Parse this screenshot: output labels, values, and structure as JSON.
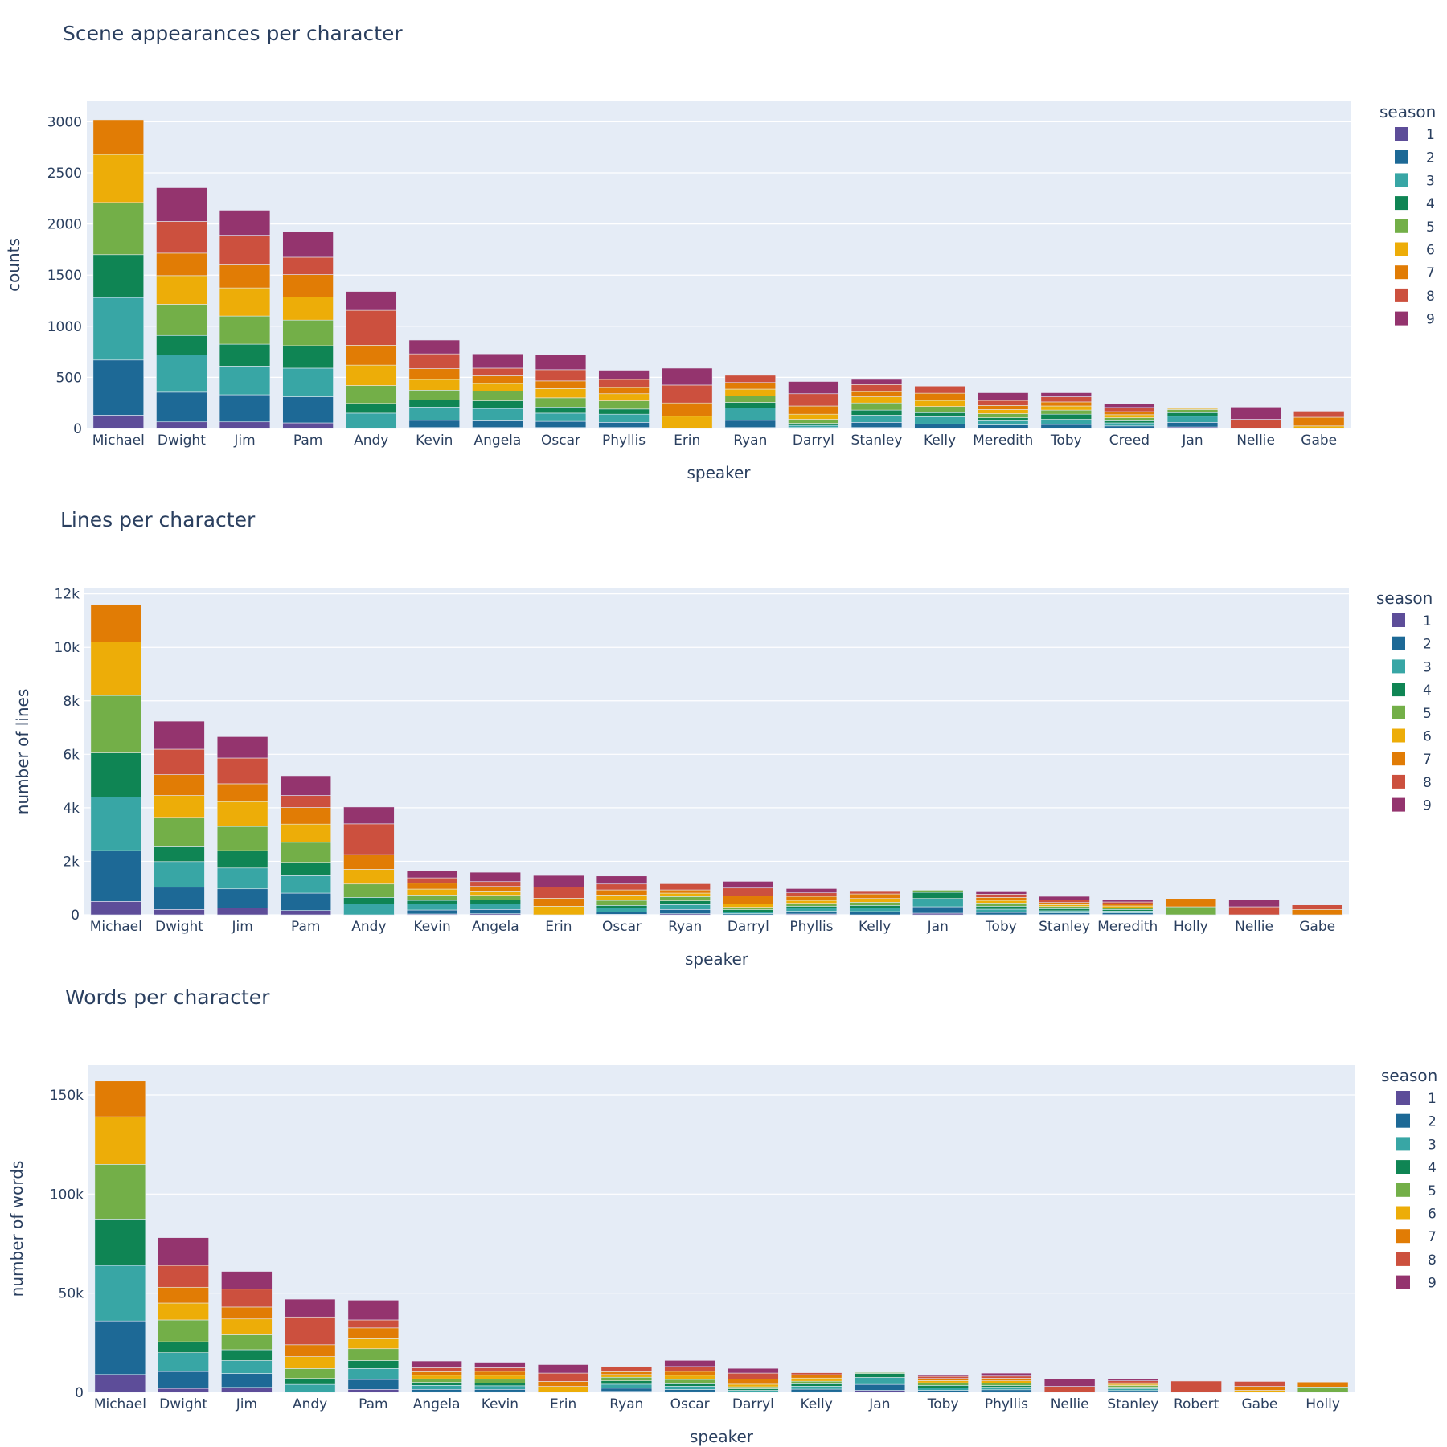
{
  "season_colors": [
    "#5d4d99",
    "#1d6996",
    "#38a6a5",
    "#0f8554",
    "#73af48",
    "#edad08",
    "#e17c05",
    "#cc503e",
    "#94346e"
  ],
  "chart_data": [
    {
      "type": "bar",
      "stacked": true,
      "title": "Scene appearances per character",
      "xlabel": "speaker",
      "ylabel": "counts",
      "legend_title": "season",
      "legend_position": "right",
      "ylim": [
        0,
        3200
      ],
      "yticks": [
        0,
        500,
        1000,
        1500,
        2000,
        2500,
        3000
      ],
      "ytick_labels": [
        "0",
        "500",
        "1000",
        "1500",
        "2000",
        "2500",
        "3000"
      ],
      "categories": [
        "Michael",
        "Dwight",
        "Jim",
        "Pam",
        "Andy",
        "Kevin",
        "Angela",
        "Oscar",
        "Phyllis",
        "Erin",
        "Ryan",
        "Darryl",
        "Stanley",
        "Kelly",
        "Meredith",
        "Toby",
        "Creed",
        "Jan",
        "Nellie",
        "Gabe"
      ],
      "series": [
        {
          "name": "1",
          "values": [
            130,
            65,
            65,
            55,
            0,
            10,
            10,
            10,
            10,
            0,
            10,
            0,
            10,
            0,
            5,
            0,
            5,
            15,
            0,
            0
          ]
        },
        {
          "name": "2",
          "values": [
            540,
            290,
            265,
            255,
            0,
            70,
            65,
            60,
            50,
            0,
            70,
            10,
            50,
            45,
            30,
            40,
            20,
            45,
            0,
            0
          ]
        },
        {
          "name": "3",
          "values": [
            610,
            365,
            280,
            280,
            150,
            130,
            120,
            80,
            80,
            0,
            120,
            20,
            70,
            70,
            40,
            50,
            30,
            60,
            0,
            0
          ]
        },
        {
          "name": "4",
          "values": [
            420,
            190,
            215,
            220,
            95,
            70,
            75,
            60,
            50,
            0,
            55,
            20,
            50,
            40,
            30,
            50,
            20,
            35,
            0,
            0
          ]
        },
        {
          "name": "5",
          "values": [
            510,
            305,
            275,
            250,
            175,
            95,
            95,
            90,
            80,
            0,
            65,
            40,
            70,
            60,
            40,
            40,
            30,
            30,
            0,
            0
          ]
        },
        {
          "name": "6",
          "values": [
            470,
            280,
            275,
            225,
            200,
            105,
            75,
            90,
            70,
            120,
            65,
            50,
            60,
            60,
            40,
            40,
            30,
            10,
            0,
            25
          ]
        },
        {
          "name": "7",
          "values": [
            340,
            220,
            225,
            220,
            195,
            105,
            75,
            75,
            60,
            130,
            65,
            80,
            50,
            70,
            40,
            40,
            30,
            0,
            0,
            85
          ]
        },
        {
          "name": "8",
          "values": [
            0,
            310,
            290,
            170,
            340,
            145,
            75,
            110,
            80,
            175,
            70,
            120,
            70,
            70,
            50,
            50,
            40,
            0,
            90,
            60
          ]
        },
        {
          "name": "9",
          "values": [
            0,
            330,
            245,
            250,
            185,
            135,
            140,
            145,
            90,
            165,
            0,
            120,
            50,
            0,
            75,
            40,
            35,
            0,
            120,
            0
          ]
        }
      ]
    },
    {
      "type": "bar",
      "stacked": true,
      "title": "Lines per character",
      "xlabel": "speaker",
      "ylabel": "number of lines",
      "legend_title": "season",
      "legend_position": "right",
      "ylim": [
        0,
        12200
      ],
      "yticks": [
        0,
        2000,
        4000,
        6000,
        8000,
        10000,
        12000
      ],
      "ytick_labels": [
        "0",
        "2k",
        "4k",
        "6k",
        "8k",
        "10k",
        "12k"
      ],
      "categories": [
        "Michael",
        "Dwight",
        "Jim",
        "Pam",
        "Andy",
        "Kevin",
        "Angela",
        "Erin",
        "Oscar",
        "Ryan",
        "Darryl",
        "Phyllis",
        "Kelly",
        "Jan",
        "Toby",
        "Stanley",
        "Meredith",
        "Holly",
        "Nellie",
        "Gabe"
      ],
      "series": [
        {
          "name": "1",
          "values": [
            500,
            200,
            250,
            160,
            0,
            30,
            40,
            0,
            20,
            40,
            0,
            30,
            0,
            60,
            0,
            10,
            10,
            0,
            0,
            0
          ]
        },
        {
          "name": "2",
          "values": [
            1900,
            830,
            720,
            650,
            0,
            150,
            160,
            0,
            80,
            160,
            40,
            100,
            120,
            240,
            90,
            60,
            60,
            0,
            0,
            0
          ]
        },
        {
          "name": "3",
          "values": [
            2000,
            960,
            780,
            650,
            400,
            220,
            210,
            0,
            150,
            180,
            70,
            120,
            130,
            310,
            120,
            80,
            70,
            0,
            0,
            0
          ]
        },
        {
          "name": "4",
          "values": [
            1650,
            550,
            650,
            500,
            250,
            140,
            150,
            0,
            100,
            140,
            80,
            70,
            100,
            230,
            110,
            80,
            60,
            0,
            0,
            0
          ]
        },
        {
          "name": "5",
          "values": [
            2150,
            1100,
            900,
            750,
            500,
            200,
            170,
            0,
            190,
            160,
            90,
            110,
            120,
            80,
            120,
            80,
            60,
            300,
            0,
            0
          ]
        },
        {
          "name": "6",
          "values": [
            2000,
            820,
            930,
            680,
            550,
            220,
            160,
            320,
            200,
            130,
            120,
            110,
            140,
            0,
            100,
            70,
            70,
            0,
            0,
            0
          ]
        },
        {
          "name": "7",
          "values": [
            1400,
            780,
            670,
            620,
            550,
            220,
            170,
            300,
            190,
            120,
            300,
            150,
            170,
            0,
            110,
            80,
            70,
            310,
            0,
            200
          ]
        },
        {
          "name": "8",
          "values": [
            0,
            950,
            960,
            450,
            1150,
            200,
            180,
            420,
            220,
            230,
            300,
            130,
            120,
            0,
            120,
            100,
            80,
            0,
            300,
            170
          ]
        },
        {
          "name": "9",
          "values": [
            0,
            1050,
            800,
            740,
            630,
            280,
            350,
            430,
            300,
            0,
            250,
            160,
            0,
            0,
            120,
            130,
            100,
            0,
            250,
            0
          ]
        }
      ]
    },
    {
      "type": "bar",
      "stacked": true,
      "title": "Words per character",
      "xlabel": "speaker",
      "ylabel": "number of words",
      "legend_title": "season",
      "legend_position": "right",
      "ylim": [
        0,
        165000
      ],
      "yticks": [
        0,
        50000,
        100000,
        150000
      ],
      "ytick_labels": [
        "0",
        "50k",
        "100k",
        "150k"
      ],
      "categories": [
        "Michael",
        "Dwight",
        "Jim",
        "Andy",
        "Pam",
        "Angela",
        "Kevin",
        "Erin",
        "Ryan",
        "Oscar",
        "Darryl",
        "Kelly",
        "Jan",
        "Toby",
        "Phyllis",
        "Nellie",
        "Stanley",
        "Robert",
        "Gabe",
        "Holly"
      ],
      "series": [
        {
          "name": "1",
          "values": [
            9000,
            2000,
            2500,
            0,
            1500,
            300,
            300,
            0,
            500,
            300,
            0,
            300,
            1000,
            0,
            300,
            0,
            200,
            0,
            0,
            0
          ]
        },
        {
          "name": "2",
          "values": [
            27000,
            8500,
            7000,
            0,
            5000,
            1200,
            1200,
            0,
            1600,
            1100,
            300,
            1300,
            3000,
            1000,
            1000,
            0,
            700,
            0,
            0,
            0
          ]
        },
        {
          "name": "3",
          "values": [
            28000,
            9500,
            6500,
            4000,
            5500,
            2000,
            1800,
            0,
            2000,
            1700,
            700,
            1500,
            3500,
            1300,
            1300,
            0,
            900,
            0,
            0,
            0
          ]
        },
        {
          "name": "4",
          "values": [
            23000,
            5500,
            5500,
            3000,
            4000,
            1500,
            1300,
            0,
            1700,
            1200,
            800,
            1200,
            2000,
            1200,
            800,
            0,
            800,
            0,
            0,
            0
          ]
        },
        {
          "name": "5",
          "values": [
            28000,
            11000,
            7500,
            5000,
            6000,
            1800,
            2000,
            0,
            1800,
            2200,
            1000,
            1300,
            500,
            1300,
            1200,
            0,
            800,
            0,
            0,
            2700
          ]
        },
        {
          "name": "6",
          "values": [
            24000,
            8500,
            8000,
            6000,
            5000,
            1800,
            2000,
            3000,
            1400,
            2100,
            1300,
            1600,
            0,
            1100,
            1200,
            0,
            700,
            0,
            1000,
            0
          ]
        },
        {
          "name": "7",
          "values": [
            18000,
            8000,
            6000,
            6000,
            5500,
            1800,
            2000,
            2500,
            1400,
            2000,
            2600,
            1700,
            0,
            1100,
            1300,
            0,
            700,
            0,
            2000,
            2500
          ]
        },
        {
          "name": "8",
          "values": [
            0,
            11000,
            9000,
            14000,
            4000,
            2000,
            1800,
            4200,
            2600,
            2400,
            3000,
            1000,
            0,
            1100,
            1100,
            3000,
            1000,
            5700,
            2500,
            0
          ]
        },
        {
          "name": "9",
          "values": [
            0,
            14000,
            9000,
            9000,
            10000,
            3400,
            2800,
            4300,
            0,
            3100,
            2400,
            0,
            0,
            900,
            1500,
            4000,
            800,
            0,
            0,
            0
          ]
        }
      ]
    }
  ]
}
